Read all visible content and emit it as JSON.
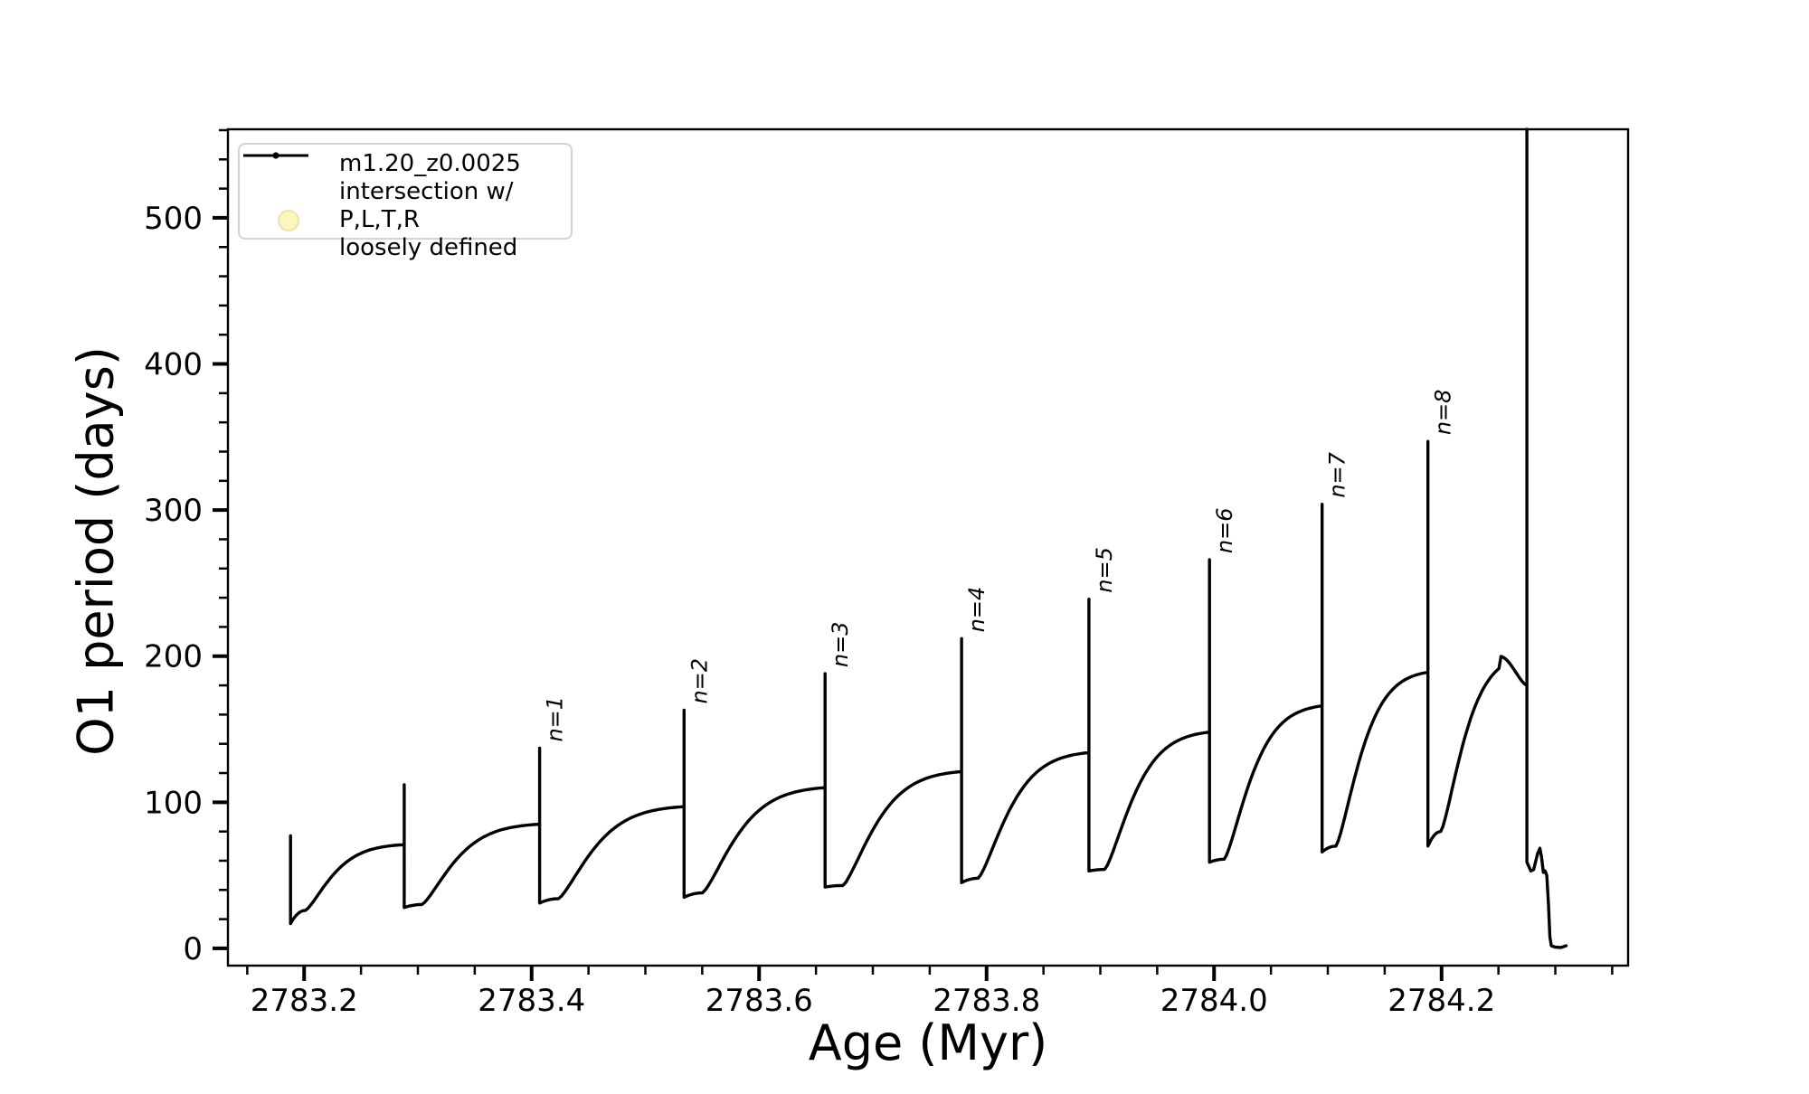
{
  "chart_data": {
    "type": "line",
    "title": "",
    "xlabel": "Age (Myr)",
    "ylabel": "O1 period (days)",
    "xlim": [
      2783.133,
      2784.364
    ],
    "ylim": [
      -11.8,
      560.6
    ],
    "grid": false,
    "legend_position": "upper left",
    "xticks": {
      "major": [
        2783.2,
        2783.4,
        2783.6,
        2783.8,
        2784.0,
        2784.2
      ],
      "labels": [
        "2783.2",
        "2783.4",
        "2783.6",
        "2783.8",
        "2784.0",
        "2784.2"
      ],
      "minor_step": 0.05,
      "minor_range": [
        2783.15,
        2784.35
      ]
    },
    "yticks": {
      "major": [
        0,
        100,
        200,
        300,
        400,
        500
      ],
      "labels": [
        "0",
        "100",
        "200",
        "300",
        "400",
        "500"
      ],
      "minor_step": 20,
      "minor_range": [
        20,
        560
      ]
    },
    "legend": [
      {
        "label": "m1.20_z0.0025",
        "type": "line-with-dot-marker",
        "color": "#000000"
      },
      {
        "label": "intersection w/ P,L,T,R\nloosely defined",
        "type": "circle-marker",
        "color": "#faf6c0",
        "edge_color": "#eae5a8"
      }
    ],
    "series_name": "m1.20_z0.0025",
    "line_color": "#000000",
    "axis_color": "#000000",
    "annotations": [
      {
        "text": "n=1",
        "x": 2783.407,
        "y": 137
      },
      {
        "text": "n=2",
        "x": 2783.534,
        "y": 163
      },
      {
        "text": "n=3",
        "x": 2783.658,
        "y": 188
      },
      {
        "text": "n=4",
        "x": 2783.778,
        "y": 212
      },
      {
        "text": "n=5",
        "x": 2783.89,
        "y": 239
      },
      {
        "text": "n=6",
        "x": 2783.996,
        "y": 266
      },
      {
        "text": "n=7",
        "x": 2784.095,
        "y": 304
      },
      {
        "text": "n=8",
        "x": 2784.188,
        "y": 347
      }
    ],
    "cycles": [
      {
        "spike_x": 2783.188,
        "spike_top": 77,
        "spike_bottom": 17,
        "recovery_min": 26,
        "hump": 71
      },
      {
        "spike_x": 2783.288,
        "spike_top": 112,
        "spike_bottom": 28,
        "recovery_min": 30,
        "hump": 85
      },
      {
        "spike_x": 2783.407,
        "spike_top": 137,
        "spike_bottom": 31,
        "recovery_min": 34,
        "hump": 97
      },
      {
        "spike_x": 2783.534,
        "spike_top": 163,
        "spike_bottom": 35,
        "recovery_min": 38,
        "hump": 110
      },
      {
        "spike_x": 2783.658,
        "spike_top": 188,
        "spike_bottom": 42,
        "recovery_min": 43,
        "hump": 121
      },
      {
        "spike_x": 2783.778,
        "spike_top": 212,
        "spike_bottom": 45,
        "recovery_min": 48,
        "hump": 134
      },
      {
        "spike_x": 2783.89,
        "spike_top": 239,
        "spike_bottom": 53,
        "recovery_min": 54,
        "hump": 148
      },
      {
        "spike_x": 2783.996,
        "spike_top": 266,
        "spike_bottom": 59,
        "recovery_min": 61,
        "hump": 166
      },
      {
        "spike_x": 2784.095,
        "spike_top": 304,
        "spike_bottom": 66,
        "recovery_min": 70,
        "hump": 189
      },
      {
        "spike_x": 2784.188,
        "spike_top": 347,
        "spike_bottom": 70,
        "recovery_min": 80,
        "hump": 200,
        "peak_frac": 0.72,
        "end_val": 180
      },
      {
        "spike_x": 2784.275,
        "spike_top": 560.6,
        "spike_bottom": 59
      }
    ],
    "final_spike": {
      "x": 2784.275,
      "clipped_at_top": true,
      "drop_to": 59
    },
    "tail_points": [
      [
        2784.2785,
        53.0
      ],
      [
        2784.281,
        54.0
      ],
      [
        2784.2845,
        65.0
      ],
      [
        2784.2865,
        68.5
      ],
      [
        2784.288,
        62.0
      ],
      [
        2784.2895,
        52.0
      ],
      [
        2784.291,
        53.0
      ],
      [
        2784.2925,
        50.0
      ],
      [
        2784.294,
        30.0
      ],
      [
        2784.2952,
        8.0
      ],
      [
        2784.2965,
        1.8
      ],
      [
        2784.3,
        0.8
      ],
      [
        2784.305,
        0.6
      ],
      [
        2784.3095,
        1.8
      ]
    ]
  }
}
